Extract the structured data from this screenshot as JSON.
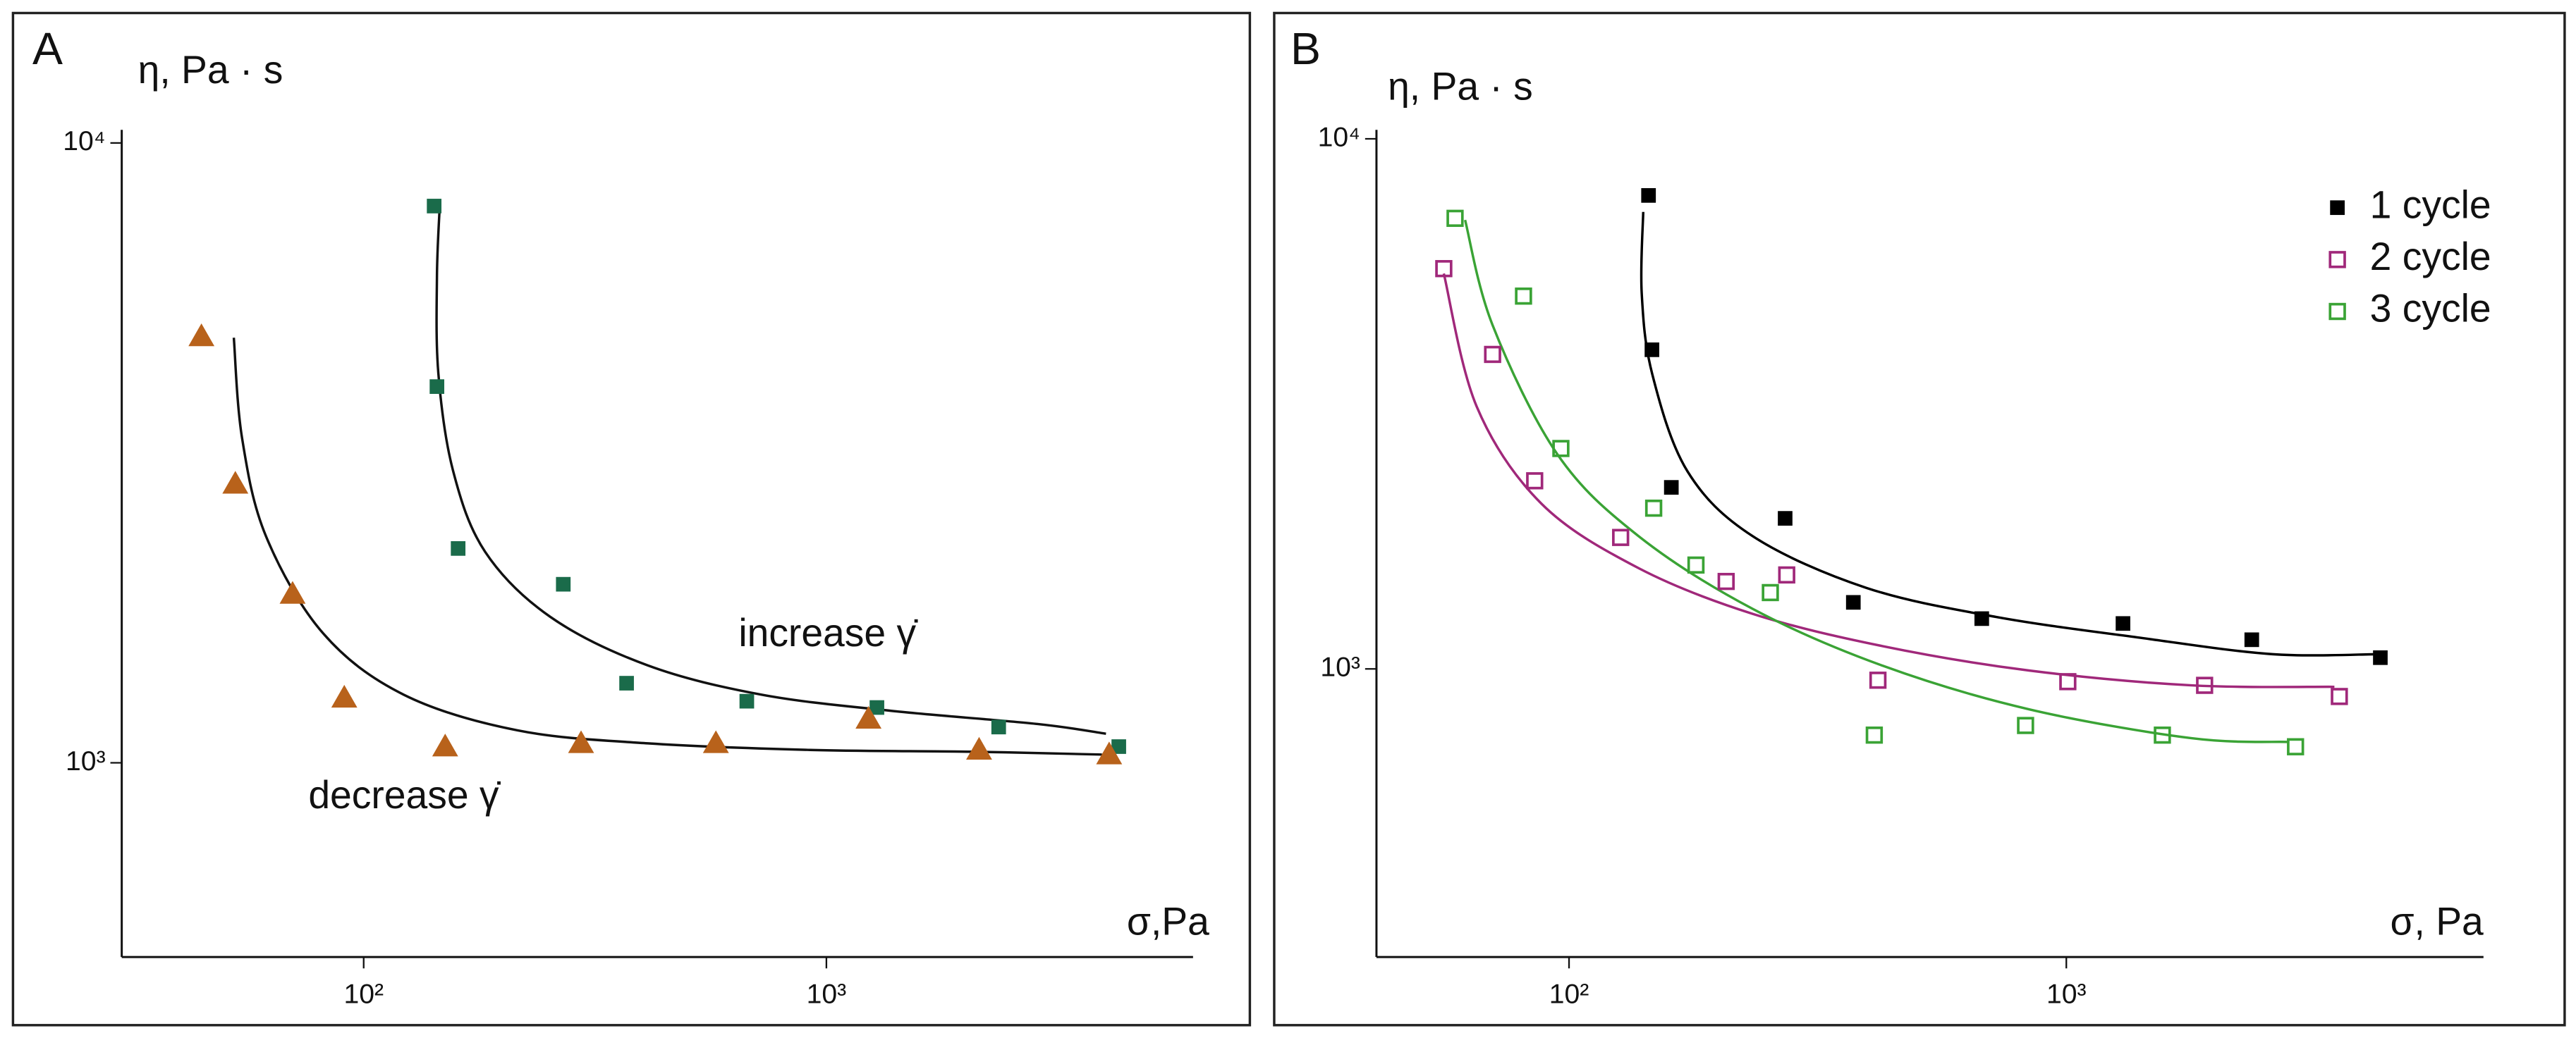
{
  "chart_data": [
    {
      "type": "scatter",
      "panel": "A",
      "ylabel": "η, Pa · s",
      "xlabel": "σ,Pa",
      "xscale": "log",
      "yscale": "log",
      "xlim": [
        30,
        6200
      ],
      "ylim": [
        486,
        10500
      ],
      "xticks": [
        {
          "value": 100,
          "label": "10²"
        },
        {
          "value": 1000,
          "label": "10³"
        }
      ],
      "yticks": [
        {
          "value": 1000,
          "label": "10³"
        },
        {
          "value": 10000,
          "label": "10⁴"
        }
      ],
      "annotations": [
        "increase γ̇",
        "decrease γ̇"
      ],
      "series": [
        {
          "color": "#1a6b4a",
          "marker": "square",
          "x": [
            142,
            144,
            160,
            270,
            370,
            673,
            1286,
            2357,
            4285
          ],
          "values": [
            7910,
            4045,
            2217,
            1941,
            1344,
            1257,
            1228,
            1142,
            1062
          ]
        },
        {
          "color": "#b8621b",
          "marker": "triangle",
          "x": [
            44.6,
            52.8,
            70.2,
            90.8,
            150,
            295,
            577,
            1233,
            2138,
            4084
          ],
          "values": [
            4874,
            2818,
            1872,
            1273,
            1062,
            1075,
            1075,
            1177,
            1049,
            1031
          ]
        }
      ],
      "curves": [
        {
          "color": "#111111",
          "x": [
            146,
            144,
            145,
            156,
            183,
            253,
            411,
            724,
            1380,
            2860,
            4020
          ],
          "values": [
            7910,
            6100,
            4250,
            2960,
            2190,
            1720,
            1436,
            1288,
            1213,
            1155,
            1114
          ]
        },
        {
          "color": "#111111",
          "x": [
            52.4,
            54.6,
            61.5,
            81.7,
            122,
            215,
            411,
            922,
            2070,
            3940
          ],
          "values": [
            4850,
            3340,
            2320,
            1618,
            1288,
            1128,
            1075,
            1049,
            1042,
            1031
          ]
        }
      ]
    },
    {
      "type": "scatter",
      "panel": "B",
      "ylabel": "η, Pa · s",
      "xlabel": "σ, Pa",
      "xscale": "log",
      "yscale": "log",
      "xlim": [
        41,
        6900
      ],
      "ylim": [
        286,
        10400
      ],
      "legend": "upper right",
      "xticks": [
        {
          "value": 100,
          "label": "10²"
        },
        {
          "value": 1000,
          "label": "10³"
        }
      ],
      "yticks": [
        {
          "value": 1000,
          "label": "10³"
        },
        {
          "value": 10000,
          "label": "10⁴"
        }
      ],
      "series": [
        {
          "name": "1 cycle",
          "color": "#000000",
          "marker": "square",
          "x": [
            144.5,
            146.8,
            160.6,
            272,
            373,
            676,
            1300,
            2360,
            4280
          ],
          "values": [
            7820,
            4000,
            2200,
            1923,
            1335,
            1244,
            1218,
            1135,
            1050
          ]
        },
        {
          "name": "2 cycle",
          "color": "#a0287a",
          "marker": "open-square",
          "x": [
            56.0,
            70.2,
            85.3,
            127,
            207,
            274,
            418,
            1007,
            1897,
            3540
          ],
          "values": [
            5690,
            3920,
            2264,
            1770,
            1462,
            1504,
            952,
            946,
            931,
            887
          ]
        },
        {
          "name": "3 cycle",
          "color": "#3aa335",
          "marker": "open-square",
          "x": [
            59.0,
            81.0,
            96.3,
            148,
            180,
            254,
            411,
            828,
            1560,
            2890
          ],
          "values": [
            7080,
            5050,
            2605,
            2010,
            1570,
            1393,
            750,
            782,
            750,
            713
          ]
        }
      ],
      "curves": [
        {
          "color": "#000000",
          "x": [
            141,
            140,
            147,
            173,
            234,
            396,
            723,
            1425,
            2600,
            4240
          ],
          "values": [
            7280,
            5120,
            3600,
            2360,
            1780,
            1422,
            1253,
            1143,
            1066,
            1066
          ]
        },
        {
          "color": "#a0287a",
          "x": [
            56.0,
            65.2,
            88.0,
            138,
            234,
            427,
            841,
            1786,
            3460
          ],
          "values": [
            5570,
            3127,
            2050,
            1549,
            1270,
            1104,
            993,
            931,
            925
          ]
        },
        {
          "color": "#3aa335",
          "x": [
            61.8,
            70.2,
            94.9,
            138,
            234,
            427,
            841,
            1786,
            2805
          ],
          "values": [
            7030,
            4450,
            2535,
            1780,
            1298,
            1014,
            839,
            740,
            728
          ]
        }
      ]
    }
  ]
}
